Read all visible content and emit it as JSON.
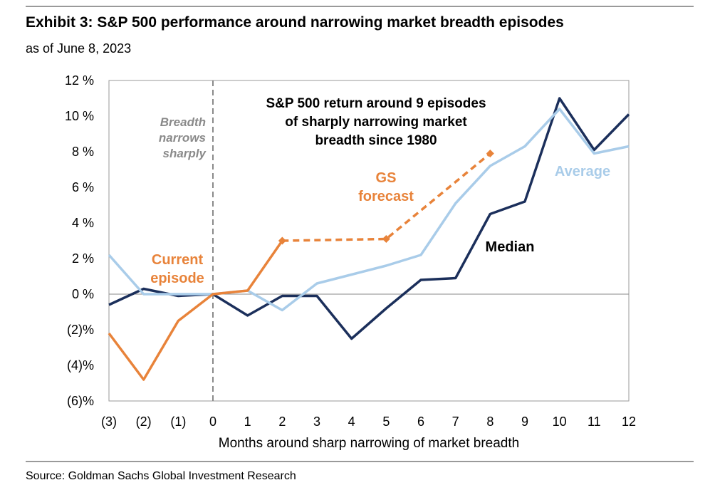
{
  "header": {
    "title": "Exhibit 3: S&P 500 performance around narrowing market breadth episodes",
    "subtitle": "as of June 8, 2023"
  },
  "footer": {
    "source": "Source: Goldman Sachs Global Investment Research"
  },
  "chart_data": {
    "type": "line",
    "title": "",
    "xlabel": "Months around sharp narrowing of market breadth",
    "ylabel": "",
    "x": [
      -3,
      -2,
      -1,
      0,
      1,
      2,
      3,
      4,
      5,
      6,
      7,
      8,
      9,
      10,
      11,
      12
    ],
    "x_tick_labels": [
      "(3)",
      "(2)",
      "(1)",
      "0",
      "1",
      "2",
      "3",
      "4",
      "5",
      "6",
      "7",
      "8",
      "9",
      "10",
      "11",
      "12"
    ],
    "y_ticks": [
      12,
      10,
      8,
      6,
      4,
      2,
      0,
      -2,
      -4,
      -6
    ],
    "y_tick_labels": [
      "12 %",
      "10 %",
      "8 %",
      "6 %",
      "4 %",
      "2 %",
      "0 %",
      "(2)%",
      "(4)%",
      "(6)%"
    ],
    "ylim": [
      -6,
      12
    ],
    "xlim": [
      -3,
      12
    ],
    "grid": false,
    "zero_line": true,
    "series": [
      {
        "name": "Median",
        "color": "#1b2f5b",
        "style": "solid",
        "x": [
          -3,
          -2,
          -1,
          0,
          1,
          2,
          3,
          4,
          5,
          6,
          7,
          8,
          9,
          10,
          11,
          12
        ],
        "values": [
          -0.6,
          0.3,
          -0.1,
          0.0,
          -1.2,
          -0.1,
          -0.1,
          -2.5,
          -0.8,
          0.8,
          0.9,
          4.5,
          5.2,
          11.0,
          8.1,
          10.1
        ]
      },
      {
        "name": "Average",
        "color": "#a9cce9",
        "style": "solid",
        "x": [
          -3,
          -2,
          -1,
          0,
          1,
          2,
          3,
          4,
          5,
          6,
          7,
          8,
          9,
          10,
          11,
          12
        ],
        "values": [
          2.2,
          0.0,
          0.0,
          0.0,
          0.2,
          -0.9,
          0.6,
          1.1,
          1.6,
          2.2,
          5.1,
          7.2,
          8.3,
          10.4,
          7.9,
          8.3
        ]
      },
      {
        "name": "Current episode",
        "color": "#e8833a",
        "style": "solid",
        "x": [
          -3,
          -2,
          -1,
          0,
          1,
          2
        ],
        "values": [
          -2.2,
          -4.8,
          -1.5,
          0.0,
          0.2,
          3.0
        ]
      },
      {
        "name": "GS forecast",
        "color": "#e8833a",
        "style": "dashed",
        "markers": "diamond",
        "x": [
          2,
          5,
          8
        ],
        "values": [
          3.0,
          3.1,
          7.9
        ]
      }
    ],
    "annotations": {
      "breadth_marker": {
        "x": 0,
        "style": "dashed",
        "color": "#8a8a8a",
        "text": [
          "Breadth",
          "narrows",
          "sharply"
        ]
      },
      "chart_note": {
        "text": [
          "S&P 500 return around 9 episodes",
          "of sharply narrowing market",
          "breadth since 1980"
        ],
        "color": "#000000"
      },
      "gs_forecast_label": {
        "text": [
          "GS",
          "forecast"
        ],
        "color": "#e8833a"
      },
      "current_episode_label": {
        "text": [
          "Current",
          "episode"
        ],
        "color": "#e8833a"
      },
      "median_label": {
        "text": [
          "Median"
        ],
        "color": "#000000"
      },
      "average_label": {
        "text": [
          "Average"
        ],
        "color": "#a9cce9"
      }
    }
  }
}
